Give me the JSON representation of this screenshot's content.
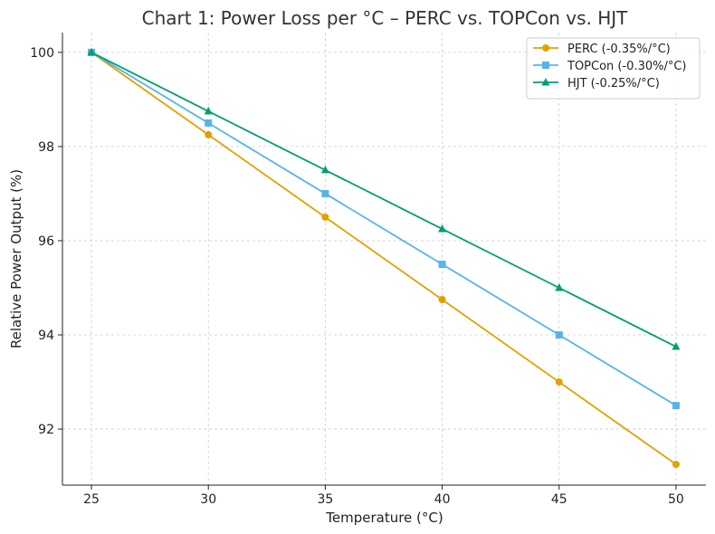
{
  "chart_data": {
    "type": "line",
    "title": "Chart 1: Power Loss per °C – PERC vs. TOPCon vs. HJT",
    "xlabel": "Temperature (°C)",
    "ylabel": "Relative Power Output (%)",
    "x": [
      25,
      30,
      35,
      40,
      45,
      50
    ],
    "xticks": [
      "25",
      "30",
      "35",
      "40",
      "45",
      "50"
    ],
    "yticks": [
      92,
      94,
      96,
      98,
      100
    ],
    "xlim": [
      23.76,
      51.28
    ],
    "ylim": [
      90.81,
      100.42
    ],
    "grid": true,
    "legend_position": "top-right",
    "series": [
      {
        "name": "PERC (-0.35%/°C)",
        "color": "#E69F00",
        "marker": "circle",
        "values": [
          100,
          98.25,
          96.5,
          94.75,
          93,
          91.25
        ]
      },
      {
        "name": "TOPCon (-0.30%/°C)",
        "color": "#56B4E9",
        "marker": "square",
        "values": [
          100,
          98.5,
          97,
          95.5,
          94,
          92.5
        ]
      },
      {
        "name": "HJT (-0.25%/°C)",
        "color": "#009E73",
        "marker": "triangle",
        "values": [
          100,
          98.75,
          97.5,
          96.25,
          95,
          93.75
        ]
      }
    ]
  }
}
